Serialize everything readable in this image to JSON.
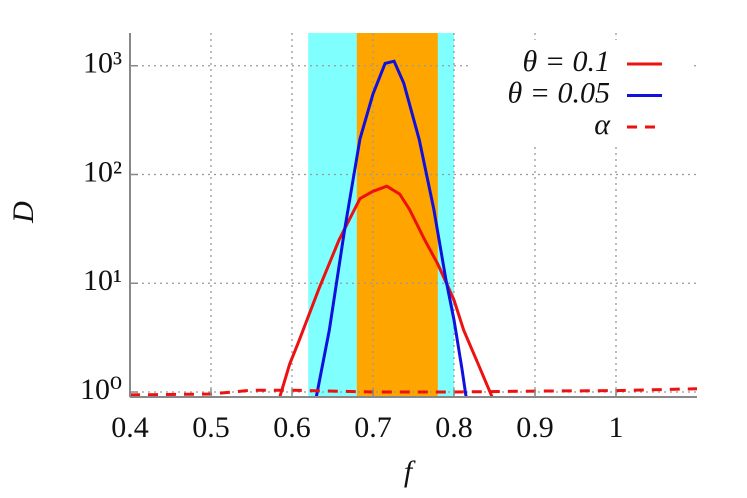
{
  "chart_data": {
    "type": "line",
    "x_label": "f",
    "y_label": "D",
    "log_y": true,
    "grid": true,
    "xlim": [
      0.4,
      1.1
    ],
    "xticks": [
      0.4,
      0.5,
      0.6,
      0.7,
      0.8,
      0.9,
      1
    ],
    "ylim": [
      0.9,
      2000
    ],
    "yticks": [
      {
        "value": 1,
        "label": "10⁰"
      },
      {
        "value": 10,
        "label": "10¹"
      },
      {
        "value": 100,
        "label": "10²"
      },
      {
        "value": 1000,
        "label": "10³"
      }
    ],
    "bands": [
      {
        "xlim": [
          0.62,
          0.8
        ],
        "color": "#80ffff"
      },
      {
        "xlim": [
          0.68,
          0.78
        ],
        "color": "#ffa500"
      }
    ],
    "series": [
      {
        "name": "θ = 0.1",
        "color": "#ee1111",
        "dash": false,
        "x": [
          0.585,
          0.597,
          0.609,
          0.633,
          0.658,
          0.684,
          0.7,
          0.717,
          0.733,
          0.745,
          0.764,
          0.78,
          0.8,
          0.812,
          0.83,
          0.847
        ],
        "values": [
          0.9,
          1.8,
          3.0,
          8.8,
          25,
          60,
          70,
          78,
          66,
          48,
          25,
          15,
          7,
          3.7,
          1.8,
          0.9
        ]
      },
      {
        "name": "θ = 0.05",
        "color": "#1111dd",
        "dash": false,
        "x": [
          0.63,
          0.646,
          0.665,
          0.684,
          0.7,
          0.715,
          0.726,
          0.738,
          0.757,
          0.775,
          0.79,
          0.8,
          0.81,
          0.815
        ],
        "values": [
          0.9,
          3.7,
          31,
          213,
          550,
          1050,
          1100,
          690,
          210,
          48,
          10.8,
          4.6,
          1.6,
          0.9
        ]
      },
      {
        "name": "α",
        "color": "#ee1111",
        "dash": true,
        "x": [
          0.4,
          0.5,
          0.55,
          0.6,
          0.7,
          0.8,
          0.9,
          1.0,
          1.1
        ],
        "values": [
          0.94,
          0.96,
          1.04,
          1.04,
          1.0,
          1.0,
          1.02,
          1.03,
          1.07
        ]
      }
    ]
  }
}
